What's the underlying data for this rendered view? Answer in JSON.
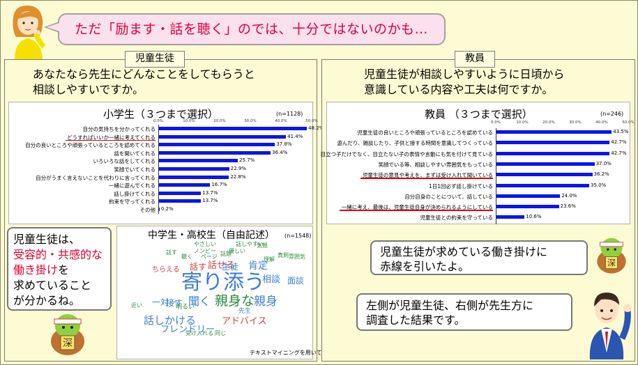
{
  "banner": {
    "text": "ただ「励ます・話を聴く」のでは、十分ではないのかも…"
  },
  "left_panel": {
    "tag": "児童生徒",
    "question_line1": "あなたなら先生にどんなことをしてもらうと",
    "question_line2": "相談しやすいですか。"
  },
  "right_panel": {
    "tag": "教員",
    "question_line1": "児童生徒が相談しやすいように日頃から",
    "question_line2": "意識している内容や工夫は何ですか。"
  },
  "charts": [
    {
      "title": "小学生（３つまで選択）",
      "n": "(n=1128)",
      "ticks": [
        "0.0%",
        "10.0%",
        "20.0%",
        "30.0%",
        "40.0%",
        "50.0%"
      ],
      "rows": [
        {
          "label": "自分の気持ちを分かってくれる",
          "value": 48.2,
          "text": "48.2%",
          "underline": false
        },
        {
          "label": "どうすればいいか一緒に考えてくれる",
          "value": 41.4,
          "text": "41.4%",
          "underline": true
        },
        {
          "label": "自分の良いところや頑張っているところを認めてくれる",
          "value": 37.8,
          "text": "37.8%",
          "underline": false
        },
        {
          "label": "話を聞いてくれる",
          "value": 36.4,
          "text": "36.4%",
          "underline": false
        },
        {
          "label": "いろいろな話をしてくれる",
          "value": 25.7,
          "text": "25.7%",
          "underline": false
        },
        {
          "label": "笑顔でいてくれる",
          "value": 22.9,
          "text": "22.9%",
          "underline": false
        },
        {
          "label": "自分がうまく言えないことを代わりに言ってくれる",
          "value": 22.8,
          "text": "22.8%",
          "underline": false
        },
        {
          "label": "一緒に遊んでくれる",
          "value": 16.7,
          "text": "16.7%",
          "underline": false
        },
        {
          "label": "話し掛けてくれる",
          "value": 13.7,
          "text": "13.7%",
          "underline": false
        },
        {
          "label": "約束を守ってくれる",
          "value": 13.7,
          "text": "13.7%",
          "underline": false
        },
        {
          "label": "その他",
          "value": 0.2,
          "text": "0.2%",
          "underline": false
        }
      ]
    },
    {
      "title": "教員 （３つまで選択）",
      "n": "(n=246)",
      "ticks": [
        "0.0%",
        "10.0%",
        "20.0%",
        "30.0%",
        "40.0%",
        "50.0%"
      ],
      "rows": [
        {
          "label": "児童生徒の良いところや頑張っているところを認めている",
          "value": 43.5,
          "text": "43.5%",
          "underline": false
        },
        {
          "label": "遊んだり、雑談したり、子供と接する時間を意識してつくっている",
          "value": 42.7,
          "text": "42.7%",
          "underline": false
        },
        {
          "label": "目立つ子だけでなく、目立たない子の表情や言動にも気を付けて見ている",
          "value": 42.7,
          "text": "42.7%",
          "underline": false
        },
        {
          "label": "笑顔でいる等、相談しやすい雰囲気をもっている",
          "value": 37.0,
          "text": "37.0%",
          "underline": false
        },
        {
          "label": "児童生徒の意見や考えを、まずは受け入れて聞いている",
          "value": 36.2,
          "text": "36.2%",
          "underline": true
        },
        {
          "label": "1日1回必ず話し掛けている",
          "value": 35.0,
          "text": "35.0%",
          "underline": false
        },
        {
          "label": "自分自身のことについて、話している",
          "value": 24.0,
          "text": "24.0%",
          "underline": false
        },
        {
          "label": "一緒に考え、最後は、児童生徒自身が決められるようにしている",
          "value": 23.6,
          "text": "23.6%",
          "underline": true
        },
        {
          "label": "児童生徒との約束を守っている",
          "value": 10.6,
          "text": "10.6%",
          "underline": false
        }
      ]
    }
  ],
  "cloud": {
    "title": "中学生・高校生（自由記述）",
    "n": "(n=1548)",
    "footer": "テキストマイニングを用いて作成",
    "words": [
      {
        "t": "寄り添う",
        "c": "#3d7fd0"
      },
      {
        "t": "親身な",
        "c": "#2a8a3a"
      },
      {
        "t": "親身",
        "c": "#3d7fd0"
      },
      {
        "t": "聞く",
        "c": "#3d7fd0"
      },
      {
        "t": "話しかける",
        "c": "#3d7fd0"
      },
      {
        "t": "フレンドリー",
        "c": "#3d7fd0"
      },
      {
        "t": "肯定",
        "c": "#3d7fd0"
      },
      {
        "t": "話せる",
        "c": "#d04040"
      },
      {
        "t": "話す",
        "c": "#d04040"
      },
      {
        "t": "生徒",
        "c": "#3d7fd0"
      },
      {
        "t": "相談",
        "c": "#3d7fd0"
      },
      {
        "t": "面談",
        "c": "#3d7fd0"
      },
      {
        "t": "接す",
        "c": "#3d7fd0"
      },
      {
        "t": "一対一",
        "c": "#3d7fd0"
      },
      {
        "t": "アドバイス",
        "c": "#d04040"
      },
      {
        "t": "ちらえる",
        "c": "#d04040"
      },
      {
        "t": "話しやすい",
        "c": "#2a8a3a"
      },
      {
        "t": "やさしい",
        "c": "#2a8a3a"
      },
      {
        "t": "気軽",
        "c": "#2a8a3a"
      },
      {
        "t": "優しい",
        "c": "#2a8a3a"
      },
      {
        "t": "理解",
        "c": "#2a8a3a"
      },
      {
        "t": "先生",
        "c": "#3d7fd0"
      },
      {
        "t": "明るい",
        "c": "#2a8a3a"
      },
      {
        "t": "ノンビー",
        "c": "#2a8a3a"
      },
      {
        "t": "ページ",
        "c": "#2a8a3a"
      },
      {
        "t": "真剣",
        "c": "#2a8a3a"
      },
      {
        "t": "雰囲気",
        "c": "#2a8a3a"
      },
      {
        "t": "話題",
        "c": "#2a8a3a"
      },
      {
        "t": "聴く",
        "c": "#2a8a3a"
      },
      {
        "t": "話す",
        "c": "#2a8a3a"
      },
      {
        "t": "近い",
        "c": "#2a8a3a"
      },
      {
        "t": "受け入れる",
        "c": "#2a8a3a"
      },
      {
        "t": "同じ",
        "c": "#2a8a3a"
      }
    ]
  },
  "bubbles": {
    "left_line1": "児童生徒は、",
    "left_red": "受容的・共感的な働き掛け",
    "left_line3": "を",
    "left_line4": "求めていること",
    "left_line5": "が分かるね。",
    "right_top_line1": "児童生徒が求めている働き掛けに",
    "right_top_line2": "赤線を引いたよ。",
    "right_bottom_line1": "左側が児童生徒、右側が先生方に",
    "right_bottom_line2": "調査した結果です。"
  },
  "mascot": {
    "badge": "深"
  }
}
